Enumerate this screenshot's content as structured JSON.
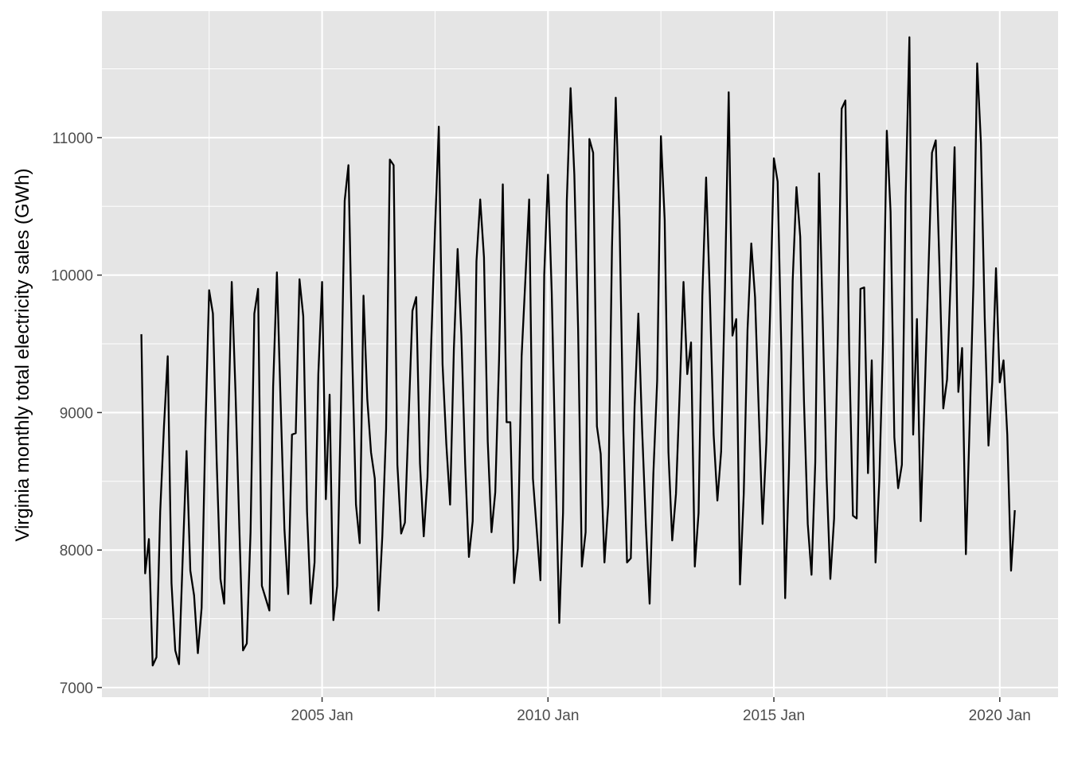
{
  "chart_data": {
    "type": "line",
    "title": "",
    "xlabel": "",
    "ylabel": "Virginia monthly total electricity sales (GWh)",
    "x_start": "2001-01",
    "x_frequency": "monthly",
    "xlim": [
      "2001-01",
      "2020-06"
    ],
    "ylim": [
      6930,
      11920
    ],
    "x_ticks": [
      {
        "date": "2005-01",
        "label": "2005 Jan"
      },
      {
        "date": "2010-01",
        "label": "2010 Jan"
      },
      {
        "date": "2015-01",
        "label": "2015 Jan"
      },
      {
        "date": "2020-01",
        "label": "2020 Jan"
      }
    ],
    "y_ticks": [
      7000,
      8000,
      9000,
      10000,
      11000
    ],
    "y_tick_labels": [
      "7000",
      "8000",
      "9000",
      "10000",
      "11000"
    ],
    "grid": true,
    "background": "#e5e5e5",
    "grid_color": "#ffffff",
    "line_color": "#000000",
    "series": [
      {
        "values": [
          9570,
          7830,
          8080,
          7160,
          7220,
          8280,
          8900,
          9410,
          7760,
          7270,
          7170,
          7960,
          8720,
          7850,
          7670,
          7250,
          7580,
          8870,
          9890,
          9720,
          8650,
          7790,
          7610,
          8830,
          9950,
          9150,
          8180,
          7270,
          7320,
          8130,
          9720,
          9900,
          7740,
          7650,
          7560,
          9190,
          10020,
          9060,
          8150,
          7680,
          8840,
          8850,
          9970,
          9700,
          8280,
          7610,
          7910,
          9280,
          9950,
          8370,
          9130,
          7490,
          7740,
          9040,
          10540,
          10800,
          9420,
          8330,
          8050,
          9850,
          9100,
          8710,
          8520,
          7560,
          8100,
          8880,
          10840,
          10800,
          8620,
          8120,
          8200,
          8970,
          9740,
          9840,
          8630,
          8100,
          8530,
          9520,
          10340,
          11080,
          9350,
          8770,
          8330,
          9460,
          10190,
          9560,
          8630,
          7950,
          8210,
          10100,
          10550,
          10130,
          8790,
          8130,
          8420,
          9380,
          10660,
          8930,
          8930,
          7760,
          8010,
          9410,
          9970,
          10550,
          8520,
          8150,
          7780,
          10000,
          10730,
          9870,
          8620,
          7470,
          8270,
          10540,
          11360,
          10730,
          9610,
          7880,
          8130,
          10990,
          10890,
          8900,
          8700,
          7910,
          8330,
          10200,
          11290,
          10400,
          8870,
          7910,
          7940,
          9040,
          9720,
          8880,
          8180,
          7610,
          8560,
          9230,
          11010,
          10400,
          8710,
          8070,
          8410,
          9160,
          9950,
          9280,
          9510,
          7880,
          8270,
          9850,
          10710,
          9850,
          8840,
          8360,
          8720,
          9890,
          11330,
          9560,
          9680,
          7750,
          8410,
          9600,
          10230,
          9840,
          9000,
          8190,
          8780,
          9720,
          10850,
          10680,
          9430,
          7650,
          8590,
          9960,
          10640,
          10280,
          9080,
          8190,
          7820,
          8640,
          10740,
          9650,
          8530,
          7790,
          8230,
          9560,
          11210,
          11270,
          9460,
          8250,
          8230,
          9900,
          9910,
          8560,
          9380,
          7910,
          8500,
          9510,
          11050,
          10460,
          8820,
          8450,
          8620,
          10570,
          11730,
          8840,
          9680,
          8210,
          9080,
          9980,
          10890,
          10980,
          10050,
          9030,
          9240,
          10000,
          10930,
          9150,
          9470,
          7970,
          8910,
          9930,
          11540,
          10960,
          9690,
          8760,
          9220,
          10050,
          9220,
          9380,
          8840,
          7850,
          8290
        ]
      }
    ]
  }
}
